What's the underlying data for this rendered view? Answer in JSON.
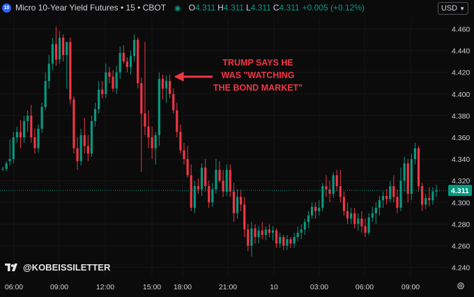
{
  "header": {
    "symbol_badge": "10",
    "title": "Micro 10-Year Yield Futures • 15 • CBOT",
    "ohlc": [
      {
        "label": "O",
        "value": "4.311"
      },
      {
        "label": "H",
        "value": "4.311"
      },
      {
        "label": "L",
        "value": "4.311"
      },
      {
        "label": "C",
        "value": "4.311"
      }
    ],
    "change": "+0.005 (+0.12%)",
    "currency": "USD"
  },
  "annotation": "TRUMP SAYS HE WAS \"WATCHING THE BOND MARKET\"",
  "watermark": "@KOBEISSILETTER",
  "colors": {
    "up": "#089981",
    "down": "#f23645",
    "background": "#0b0b0b",
    "annotation": "#f23645"
  },
  "chart_data": {
    "type": "candlestick",
    "y_axis": {
      "ticks": [
        "4.460",
        "4.440",
        "4.420",
        "4.400",
        "4.380",
        "4.360",
        "4.340",
        "4.320",
        "4.300",
        "4.280",
        "4.260",
        "4.240"
      ],
      "range": [
        4.232,
        4.47
      ]
    },
    "x_axis": {
      "ticks": [
        "06:00",
        "09:00",
        "12:00",
        "15:00",
        "18:00",
        "21:00",
        "10",
        "03:00",
        "06:00",
        "09:00"
      ]
    },
    "last_price": 4.311,
    "last_price_label": "4.311",
    "annotation_target": [
      47,
      4.416
    ],
    "candles": [
      [
        0,
        4.331,
        4.333,
        4.329,
        4.331
      ],
      [
        1,
        4.331,
        4.338,
        4.329,
        4.336
      ],
      [
        2,
        4.338,
        4.358,
        4.334,
        4.34
      ],
      [
        3,
        4.34,
        4.365,
        4.336,
        4.36
      ],
      [
        4,
        4.36,
        4.37,
        4.355,
        4.365
      ],
      [
        5,
        4.365,
        4.376,
        4.35,
        4.36
      ],
      [
        6,
        4.36,
        4.38,
        4.355,
        4.375
      ],
      [
        7,
        4.375,
        4.385,
        4.365,
        4.38
      ],
      [
        8,
        4.38,
        4.39,
        4.355,
        4.36
      ],
      [
        9,
        4.36,
        4.368,
        4.345,
        4.35
      ],
      [
        10,
        4.35,
        4.372,
        4.346,
        4.368
      ],
      [
        11,
        4.368,
        4.392,
        4.364,
        4.388
      ],
      [
        12,
        4.388,
        4.42,
        4.385,
        4.412
      ],
      [
        13,
        4.412,
        4.436,
        4.405,
        4.428
      ],
      [
        14,
        4.428,
        4.452,
        4.422,
        4.446
      ],
      [
        15,
        4.446,
        4.462,
        4.426,
        4.432
      ],
      [
        16,
        4.432,
        4.458,
        4.428,
        4.452
      ],
      [
        17,
        4.452,
        4.455,
        4.43,
        4.436
      ],
      [
        18,
        4.436,
        4.448,
        4.405,
        4.448
      ],
      [
        19,
        4.448,
        4.452,
        4.39,
        4.395
      ],
      [
        20,
        4.395,
        4.398,
        4.345,
        4.35
      ],
      [
        21,
        4.35,
        4.36,
        4.33,
        4.338
      ],
      [
        22,
        4.338,
        4.368,
        4.334,
        4.362
      ],
      [
        23,
        4.362,
        4.378,
        4.345,
        4.352
      ],
      [
        24,
        4.352,
        4.362,
        4.338,
        4.345
      ],
      [
        25,
        4.345,
        4.38,
        4.342,
        4.375
      ],
      [
        26,
        4.375,
        4.392,
        4.37,
        4.386
      ],
      [
        27,
        4.386,
        4.412,
        4.382,
        4.404
      ],
      [
        28,
        4.404,
        4.412,
        4.396,
        4.4
      ],
      [
        29,
        4.4,
        4.428,
        4.396,
        4.42
      ],
      [
        30,
        4.42,
        4.425,
        4.41,
        4.416
      ],
      [
        31,
        4.416,
        4.422,
        4.402,
        4.405
      ],
      [
        32,
        4.405,
        4.426,
        4.4,
        4.42
      ],
      [
        33,
        4.42,
        4.444,
        4.414,
        4.438
      ],
      [
        34,
        4.438,
        4.445,
        4.428,
        4.43
      ],
      [
        35,
        4.43,
        4.434,
        4.42,
        4.425
      ],
      [
        36,
        4.425,
        4.44,
        4.418,
        4.435
      ],
      [
        37,
        4.435,
        4.455,
        4.43,
        4.45
      ],
      [
        38,
        4.45,
        4.452,
        4.405,
        4.41
      ],
      [
        39,
        4.41,
        4.415,
        4.328,
        4.382
      ],
      [
        40,
        4.382,
        4.448,
        4.362,
        4.37
      ],
      [
        41,
        4.37,
        4.385,
        4.35,
        4.36
      ],
      [
        42,
        4.36,
        4.37,
        4.34,
        4.35
      ],
      [
        43,
        4.35,
        4.365,
        4.335,
        4.362
      ],
      [
        44,
        4.362,
        4.42,
        4.352,
        4.414
      ],
      [
        45,
        4.414,
        4.418,
        4.395,
        4.405
      ],
      [
        46,
        4.405,
        4.417,
        4.392,
        4.412
      ],
      [
        47,
        4.412,
        4.418,
        4.396,
        4.4
      ],
      [
        48,
        4.4,
        4.405,
        4.382,
        4.385
      ],
      [
        49,
        4.385,
        4.392,
        4.36,
        4.365
      ],
      [
        50,
        4.365,
        4.372,
        4.345,
        4.348
      ],
      [
        51,
        4.348,
        4.355,
        4.335,
        4.34
      ],
      [
        52,
        4.34,
        4.352,
        4.323,
        4.325
      ],
      [
        53,
        4.325,
        4.335,
        4.292,
        4.295
      ],
      [
        54,
        4.295,
        4.32,
        4.29,
        4.315
      ],
      [
        55,
        4.315,
        4.322,
        4.308,
        4.312
      ],
      [
        56,
        4.312,
        4.336,
        4.306,
        4.332
      ],
      [
        57,
        4.332,
        4.34,
        4.31,
        4.315
      ],
      [
        58,
        4.315,
        4.32,
        4.295,
        4.3
      ],
      [
        59,
        4.3,
        4.318,
        4.296,
        4.312
      ],
      [
        60,
        4.312,
        4.34,
        4.308,
        4.33
      ],
      [
        61,
        4.33,
        4.338,
        4.318,
        4.32
      ],
      [
        62,
        4.32,
        4.33,
        4.305,
        4.31
      ],
      [
        63,
        4.31,
        4.335,
        4.306,
        4.33
      ],
      [
        64,
        4.33,
        4.335,
        4.305,
        4.31
      ],
      [
        65,
        4.31,
        4.318,
        4.282,
        4.29
      ],
      [
        66,
        4.29,
        4.312,
        4.285,
        4.305
      ],
      [
        67,
        4.305,
        4.312,
        4.292,
        4.298
      ],
      [
        68,
        4.298,
        4.305,
        4.268,
        4.275
      ],
      [
        69,
        4.275,
        4.28,
        4.255,
        4.26
      ],
      [
        70,
        4.26,
        4.282,
        4.25,
        4.276
      ],
      [
        71,
        4.276,
        4.28,
        4.262,
        4.268
      ],
      [
        72,
        4.268,
        4.278,
        4.262,
        4.274
      ],
      [
        73,
        4.274,
        4.282,
        4.266,
        4.27
      ],
      [
        74,
        4.27,
        4.278,
        4.265,
        4.275
      ],
      [
        75,
        4.275,
        4.28,
        4.268,
        4.272
      ],
      [
        76,
        4.272,
        4.278,
        4.265,
        4.274
      ],
      [
        77,
        4.274,
        4.276,
        4.258,
        4.262
      ],
      [
        78,
        4.262,
        4.272,
        4.258,
        4.268
      ],
      [
        79,
        4.268,
        4.27,
        4.256,
        4.26
      ],
      [
        80,
        4.26,
        4.27,
        4.256,
        4.266
      ],
      [
        81,
        4.266,
        4.268,
        4.258,
        4.262
      ],
      [
        82,
        4.262,
        4.272,
        4.258,
        4.268
      ],
      [
        83,
        4.268,
        4.278,
        4.264,
        4.272
      ],
      [
        84,
        4.272,
        4.28,
        4.266,
        4.275
      ],
      [
        85,
        4.275,
        4.285,
        4.27,
        4.282
      ],
      [
        86,
        4.282,
        4.292,
        4.276,
        4.288
      ],
      [
        87,
        4.288,
        4.3,
        4.285,
        4.296
      ],
      [
        88,
        4.296,
        4.3,
        4.285,
        4.292
      ],
      [
        89,
        4.292,
        4.302,
        4.288,
        4.295
      ],
      [
        90,
        4.295,
        4.318,
        4.292,
        4.315
      ],
      [
        91,
        4.315,
        4.325,
        4.305,
        4.312
      ],
      [
        92,
        4.312,
        4.32,
        4.3,
        4.308
      ],
      [
        93,
        4.308,
        4.328,
        4.304,
        4.325
      ],
      [
        94,
        4.325,
        4.33,
        4.31,
        4.315
      ],
      [
        95,
        4.315,
        4.33,
        4.3,
        4.305
      ],
      [
        96,
        4.305,
        4.31,
        4.288,
        4.292
      ],
      [
        97,
        4.292,
        4.3,
        4.28,
        4.285
      ],
      [
        98,
        4.285,
        4.295,
        4.28,
        4.29
      ],
      [
        99,
        4.29,
        4.295,
        4.276,
        4.28
      ],
      [
        100,
        4.28,
        4.29,
        4.274,
        4.285
      ],
      [
        101,
        4.285,
        4.292,
        4.272,
        4.278
      ],
      [
        102,
        4.278,
        4.285,
        4.268,
        4.272
      ],
      [
        103,
        4.272,
        4.29,
        4.27,
        4.286
      ],
      [
        104,
        4.286,
        4.296,
        4.282,
        4.29
      ],
      [
        105,
        4.29,
        4.3,
        4.28,
        4.295
      ],
      [
        106,
        4.295,
        4.306,
        4.288,
        4.302
      ],
      [
        107,
        4.302,
        4.31,
        4.295,
        4.306
      ],
      [
        108,
        4.306,
        4.312,
        4.298,
        4.303
      ],
      [
        109,
        4.303,
        4.32,
        4.3,
        4.315
      ],
      [
        110,
        4.315,
        4.325,
        4.3,
        4.305
      ],
      [
        111,
        4.305,
        4.312,
        4.29,
        4.295
      ],
      [
        112,
        4.295,
        4.332,
        4.292,
        4.32
      ],
      [
        113,
        4.32,
        4.342,
        4.31,
        4.336
      ],
      [
        114,
        4.336,
        4.34,
        4.3,
        4.308
      ],
      [
        115,
        4.308,
        4.345,
        4.302,
        4.34
      ],
      [
        116,
        4.34,
        4.355,
        4.335,
        4.35
      ],
      [
        117,
        4.35,
        4.352,
        4.31,
        4.315
      ],
      [
        118,
        4.315,
        4.318,
        4.292,
        4.298
      ],
      [
        119,
        4.298,
        4.308,
        4.294,
        4.304
      ],
      [
        120,
        4.304,
        4.314,
        4.296,
        4.302
      ],
      [
        121,
        4.302,
        4.314,
        4.298,
        4.31
      ],
      [
        122,
        4.31,
        4.316,
        4.305,
        4.311
      ]
    ]
  }
}
